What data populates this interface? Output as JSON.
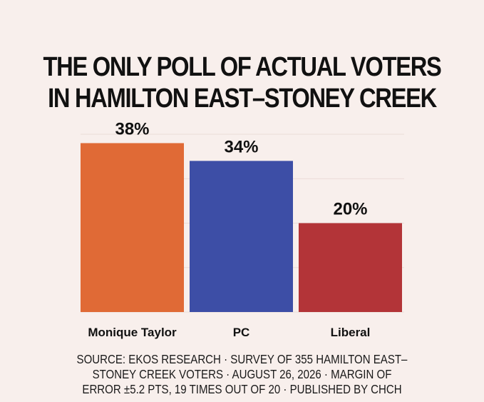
{
  "title_lines": [
    "THE ONLY POLL OF ACTUAL VOTERS",
    "IN HAMILTON EAST–STONEY CREEK"
  ],
  "chart_data": {
    "type": "bar",
    "categories": [
      "Monique Taylor",
      "PC",
      "Liberal"
    ],
    "values": [
      38,
      34,
      20
    ],
    "value_labels": [
      "38%",
      "34%",
      "20%"
    ],
    "colors": [
      "#e06a36",
      "#3d4ea6",
      "#b33438"
    ],
    "ylim": [
      0,
      40
    ],
    "grid": true
  },
  "source_lines": [
    "SOURCE: EKOS RESEARCH · SURVEY OF 355 HAMILTON EAST–",
    "STONEY CREEK VOTERS · AUGUST 26, 2026 · MARGIN OF",
    "ERROR ±5.2 PTS, 19 TIMES OUT OF 20 · PUBLISHED BY CHCH"
  ]
}
